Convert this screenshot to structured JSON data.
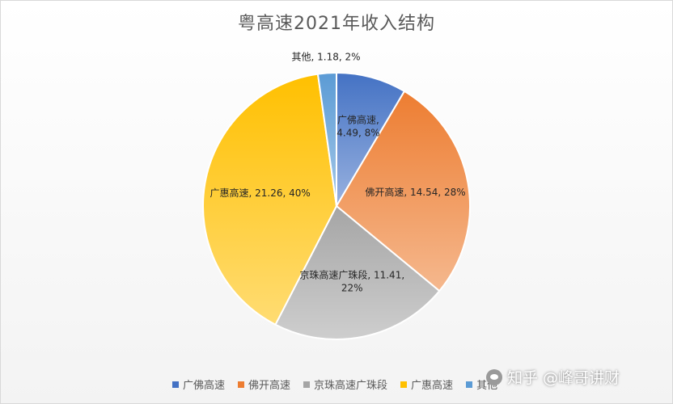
{
  "chart_data": {
    "type": "pie",
    "title": "粤高速2021年收入结构",
    "slices": [
      {
        "name": "广佛高速",
        "value": 4.49,
        "percent_label": "8%",
        "color": "#4472c4",
        "label_lines": [
          "广佛高速,",
          "4.49, 8%"
        ]
      },
      {
        "name": "佛开高速",
        "value": 14.54,
        "percent_label": "28%",
        "color": "#ed7d31",
        "label_lines": [
          "佛开高速, 14.54, 28%"
        ]
      },
      {
        "name": "京珠高速广珠段",
        "value": 11.41,
        "percent_label": "22%",
        "color": "#a5a5a5",
        "label_lines": [
          "京珠高速广珠段, 11.41,",
          "22%"
        ]
      },
      {
        "name": "广惠高速",
        "value": 21.26,
        "percent_label": "40%",
        "color": "#ffc000",
        "label_lines": [
          "广惠高速, 21.26, 40%"
        ]
      },
      {
        "name": "其他",
        "value": 1.18,
        "percent_label": "2%",
        "color": "#5b9bd5",
        "label_lines": [
          "其他, 1.18, 2%"
        ]
      }
    ],
    "legend_position": "bottom",
    "start_angle": "top, clockwise"
  },
  "legend": {
    "items": [
      "广佛高速",
      "佛开高速",
      "京珠高速广珠段",
      "广惠高速",
      "其他"
    ]
  },
  "watermark": {
    "text": "知乎 @峰哥讲财"
  }
}
